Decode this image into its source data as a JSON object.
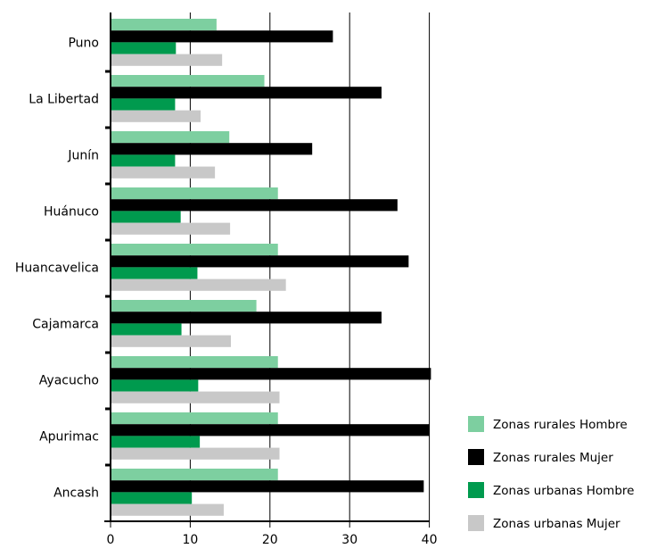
{
  "chart_data": {
    "type": "bar",
    "orientation": "horizontal",
    "categories": [
      "Puno",
      "La Libertad",
      "Junín",
      "Huánuco",
      "Huancavelica",
      "Cajamarca",
      "Ayacucho",
      "Apurimac",
      "Ancash"
    ],
    "series": [
      {
        "name": "Zonas rurales Hombre",
        "color": "#7dcfa0",
        "values": [
          13.3,
          19.3,
          14.9,
          21.0,
          21.0,
          18.3,
          21.0,
          21.0,
          21.0
        ]
      },
      {
        "name": "Zonas rurales Mujer",
        "color": "#000000",
        "values": [
          27.9,
          34.0,
          25.3,
          36.0,
          37.4,
          34.0,
          40.2,
          40.0,
          39.3
        ]
      },
      {
        "name": "Zonas urbanas Hombre",
        "color": "#009a4e",
        "values": [
          8.2,
          8.1,
          8.1,
          8.8,
          10.9,
          8.9,
          11.0,
          11.2,
          10.2
        ]
      },
      {
        "name": "Zonas urbanas Mujer",
        "color": "#c8c8c8",
        "values": [
          14.0,
          11.3,
          13.1,
          15.0,
          22.0,
          15.1,
          21.2,
          21.2,
          14.2
        ]
      }
    ],
    "xlim": [
      0,
      40
    ],
    "xticks": [
      0,
      10,
      20,
      30,
      40
    ],
    "grid": "vertical",
    "legend_position": "right-bottom",
    "title": "",
    "xlabel": "",
    "ylabel": ""
  }
}
